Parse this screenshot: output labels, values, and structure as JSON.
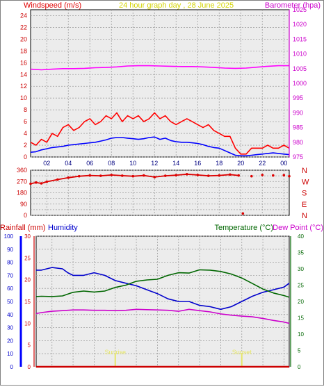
{
  "header": {
    "left_title": "Windspeed (m/s)",
    "center_title": "24 hour graph day , 28 June 2025",
    "right_title": "Barometer (hpa)"
  },
  "colors": {
    "background": "#ffffff",
    "plot_background": "#ececec",
    "grid": "#a0a0a0",
    "wind_gust": "#ff0000",
    "wind_avg": "#0000ff",
    "barometer": "#ff00ff",
    "wind_direction": "#dd0000",
    "rainfall": "#cc0000",
    "humidity": "#0000cc",
    "temperature": "#006600",
    "dew_point": "#cc00cc",
    "sun_marker": "#e6e66a",
    "title_yellow": "#d4d400"
  },
  "chart_data": [
    {
      "type": "line",
      "title": "24 hour graph day , 28 June 2025",
      "xlabel": "",
      "x_ticks": [
        "02",
        "04",
        "06",
        "08",
        "10",
        "12",
        "14",
        "16",
        "18",
        "20",
        "22",
        "00"
      ],
      "x_range_hours": [
        0.5,
        24.5
      ],
      "left_axis": {
        "label": "Windspeed (m/s)",
        "ylim": [
          0,
          25
        ],
        "ticks": [
          "0",
          "2",
          "4",
          "6",
          "8",
          "10",
          "12",
          "14",
          "16",
          "18",
          "20",
          "22",
          "24"
        ]
      },
      "right_axis": {
        "label": "Barometer (hpa)",
        "ylim": [
          975,
          1025
        ],
        "ticks": [
          "975",
          "980",
          "985",
          "990",
          "995",
          "1000",
          "1005",
          "1010",
          "1015",
          "1020",
          "1025"
        ]
      },
      "grid": true,
      "series": [
        {
          "name": "Gust",
          "axis": "left",
          "x": [
            0.5,
            1,
            1.5,
            2,
            2.5,
            3,
            3.5,
            4,
            4.5,
            5,
            5.5,
            6,
            6.5,
            7,
            7.5,
            8,
            8.5,
            9,
            9.5,
            10,
            10.5,
            11,
            11.5,
            12,
            12.5,
            13,
            13.5,
            14,
            14.5,
            15,
            15.5,
            16,
            16.5,
            17,
            17.5,
            18,
            18.5,
            19,
            19.5,
            20,
            20.5,
            21,
            21.5,
            22,
            22.5,
            23,
            23.5,
            24,
            24.5
          ],
          "values": [
            2.5,
            2,
            3,
            2.5,
            4,
            3.5,
            5,
            5.5,
            4.5,
            5,
            6,
            6.5,
            5.5,
            6,
            7,
            6.5,
            7.5,
            6,
            7,
            6.5,
            7,
            6,
            6.5,
            7.5,
            6.5,
            7,
            6,
            5.5,
            6,
            6.5,
            6,
            5.5,
            5,
            5.5,
            4.5,
            4,
            3.5,
            3.5,
            1.5,
            0.5,
            0.5,
            1.5,
            1.5,
            1.5,
            2,
            1.5,
            1.5,
            2,
            1.5
          ]
        },
        {
          "name": "Average",
          "axis": "left",
          "x": [
            0.5,
            1,
            1.5,
            2,
            2.5,
            3,
            3.5,
            4,
            4.5,
            5,
            5.5,
            6,
            6.5,
            7,
            7.5,
            8,
            8.5,
            9,
            9.5,
            10,
            10.5,
            11,
            11.5,
            12,
            12.5,
            13,
            13.5,
            14,
            14.5,
            15,
            15.5,
            16,
            16.5,
            17,
            17.5,
            18,
            18.5,
            19,
            19.5,
            20,
            20.5,
            21,
            21.5,
            22,
            22.5,
            23,
            23.5,
            24,
            24.5
          ],
          "values": [
            0.8,
            0.9,
            1.2,
            1.4,
            1.6,
            1.7,
            1.8,
            2,
            2.1,
            2.2,
            2.3,
            2.4,
            2.5,
            2.7,
            2.9,
            3.2,
            3.3,
            3.3,
            3.2,
            3.1,
            3,
            3.1,
            3.3,
            3.4,
            3,
            3.2,
            2.8,
            2.6,
            2.5,
            2.5,
            2.4,
            2.3,
            2.1,
            1.8,
            1.6,
            1.5,
            1.1,
            0.7,
            0.3,
            0.2,
            0.2,
            0.3,
            0.4,
            0.5,
            0.6,
            0.7,
            0.6,
            0.5,
            0.4
          ]
        },
        {
          "name": "Barometer",
          "axis": "right",
          "x": [
            0.5,
            1.5,
            2.5,
            3.5,
            4.5,
            5.5,
            6.5,
            7.5,
            8.5,
            9.5,
            10.5,
            11.5,
            12.5,
            13.5,
            14.5,
            15.5,
            16.5,
            17.5,
            18.5,
            19.5,
            20.5,
            21.5,
            22.5,
            23.5,
            24.5
          ],
          "values": [
            1004.8,
            1004.6,
            1004.8,
            1005.0,
            1005.0,
            1005.1,
            1005.3,
            1005.4,
            1005.6,
            1005.9,
            1006.0,
            1006.0,
            1005.9,
            1005.8,
            1005.7,
            1005.7,
            1005.6,
            1005.4,
            1005.2,
            1005.1,
            1005.2,
            1005.5,
            1005.8,
            1006.0,
            1006.0
          ]
        }
      ]
    },
    {
      "type": "scatter",
      "title": "",
      "x_ticks": [
        "02",
        "04",
        "06",
        "08",
        "10",
        "12",
        "14",
        "16",
        "18",
        "20",
        "22",
        "00"
      ],
      "x_range_hours": [
        0.5,
        24.5
      ],
      "left_axis": {
        "ylim": [
          0,
          360
        ],
        "ticks": [
          "0",
          "45",
          "90",
          "135",
          "180",
          "225",
          "270",
          "315",
          "360"
        ]
      },
      "right_axis": {
        "ticks": [
          "N",
          "E",
          "S",
          "W",
          "N"
        ]
      },
      "grid": true,
      "series": [
        {
          "name": "Wind direction",
          "x": [
            0.5,
            1,
            1.5,
            2,
            3,
            4,
            5,
            6,
            7,
            8,
            9,
            10,
            11,
            12,
            13,
            14,
            15,
            16,
            17,
            18,
            19,
            19.8,
            20.2,
            21,
            22,
            23,
            24,
            24.5
          ],
          "values": [
            252,
            262,
            255,
            268,
            285,
            300,
            312,
            318,
            315,
            322,
            316,
            312,
            318,
            305,
            315,
            320,
            328,
            322,
            315,
            318,
            325,
            318,
            15,
            312,
            322,
            318,
            320,
            312
          ]
        }
      ]
    },
    {
      "type": "line",
      "title": "",
      "x_ticks": [
        "02",
        "04",
        "06",
        "08",
        "10",
        "12",
        "14",
        "16",
        "18",
        "20",
        "22",
        "00"
      ],
      "x_range_hours": [
        0.5,
        24.5
      ],
      "axes": {
        "humidity": {
          "label": "Humidity",
          "ylim": [
            0,
            100
          ],
          "ticks": [
            "0",
            "10",
            "20",
            "30",
            "40",
            "50",
            "60",
            "70",
            "80",
            "90",
            "100"
          ]
        },
        "rainfall": {
          "label": "Rainfall (mm)",
          "ylim": [
            0,
            30
          ],
          "ticks": [
            "0",
            "5",
            "10",
            "15",
            "20",
            "25",
            "30"
          ]
        },
        "temperature": {
          "label": "Temperature (°C)",
          "ylim": [
            0,
            40
          ],
          "ticks": [
            "0",
            "5",
            "10",
            "15",
            "20",
            "25",
            "30",
            "35",
            "40"
          ]
        },
        "dew_point": {
          "label": "Dew Point (°C)"
        }
      },
      "grid": true,
      "annotations": [
        {
          "label": "Sunrise",
          "x": 8
        },
        {
          "label": "Sunset",
          "x": 20
        }
      ],
      "series": [
        {
          "name": "Humidity",
          "axis": "humidity",
          "x": [
            0.5,
            1,
            2,
            3,
            3.5,
            4,
            5,
            6,
            7,
            8,
            9,
            10,
            11,
            12,
            13,
            14,
            15,
            16,
            17,
            18,
            19,
            20,
            21,
            22,
            23,
            24,
            24.5
          ],
          "values": [
            74,
            74,
            76,
            75,
            72,
            70,
            70,
            72,
            70,
            66,
            64,
            62,
            59,
            56,
            52,
            50,
            50,
            47,
            46,
            44,
            46,
            50,
            54,
            57,
            59,
            61,
            64
          ]
        },
        {
          "name": "Temperature",
          "axis": "temperature",
          "x": [
            0.5,
            1,
            2,
            3,
            4,
            5,
            6,
            7,
            8,
            9,
            10,
            11,
            12,
            13,
            14,
            15,
            16,
            17,
            18,
            19,
            20,
            21,
            22,
            23,
            24,
            24.5
          ],
          "values": [
            21.5,
            21.6,
            21.5,
            21.7,
            22.8,
            23.2,
            22.9,
            23.2,
            24.3,
            25.0,
            26.2,
            26.6,
            26.8,
            28.0,
            28.8,
            28.7,
            29.7,
            29.6,
            29.2,
            28.4,
            27.2,
            25.5,
            23.8,
            22.6,
            21.8,
            21.3
          ]
        },
        {
          "name": "Dew Point",
          "axis": "temperature",
          "x": [
            0.5,
            1,
            2,
            3,
            4,
            5,
            6,
            7,
            8,
            9,
            10,
            11,
            12,
            13,
            14,
            15,
            16,
            17,
            18,
            19,
            20,
            21,
            22,
            23,
            24,
            24.5
          ],
          "values": [
            16.3,
            16.6,
            17.0,
            17.2,
            17.4,
            17.4,
            17.3,
            17.3,
            17.2,
            17.3,
            17.6,
            17.5,
            17.4,
            17.3,
            17.0,
            17.6,
            17.2,
            16.8,
            16.2,
            15.8,
            15.5,
            15.3,
            14.8,
            14.2,
            13.7,
            13.3
          ]
        },
        {
          "name": "Rainfall",
          "axis": "rainfall",
          "x": [
            0.5,
            24.5
          ],
          "values": [
            0,
            0
          ]
        }
      ]
    }
  ]
}
